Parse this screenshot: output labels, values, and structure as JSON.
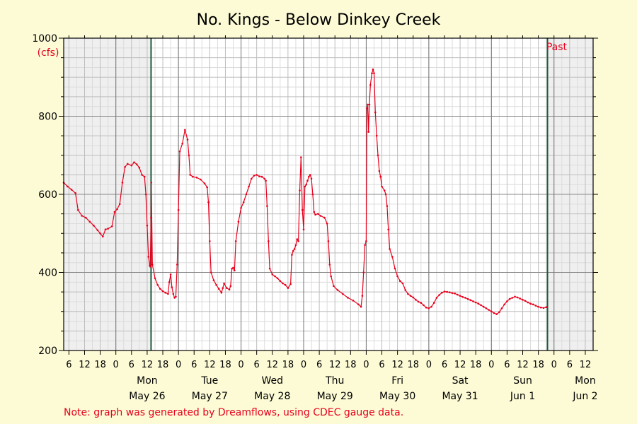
{
  "chart_data": {
    "type": "line",
    "title": "No. Kings - Below Dinkey Creek",
    "ylabel": "(cfs)",
    "ylim": [
      200,
      1000
    ],
    "yticks": [
      200,
      400,
      600,
      800,
      1000
    ],
    "x_unit": "hours",
    "xlim": [
      -20,
      183
    ],
    "past_label": "Past",
    "shaded_before": 13.5,
    "shaded_after": 165.5,
    "hour_ticks": [
      {
        "x": -18,
        "label": "6"
      },
      {
        "x": -12,
        "label": "12"
      },
      {
        "x": -6,
        "label": "18"
      },
      {
        "x": 0,
        "label": "0"
      },
      {
        "x": 6,
        "label": "6"
      },
      {
        "x": 12,
        "label": "12"
      },
      {
        "x": 18,
        "label": "18"
      },
      {
        "x": 24,
        "label": "0"
      },
      {
        "x": 30,
        "label": "6"
      },
      {
        "x": 36,
        "label": "12"
      },
      {
        "x": 42,
        "label": "18"
      },
      {
        "x": 48,
        "label": "0"
      },
      {
        "x": 54,
        "label": "6"
      },
      {
        "x": 60,
        "label": "12"
      },
      {
        "x": 66,
        "label": "18"
      },
      {
        "x": 72,
        "label": "0"
      },
      {
        "x": 78,
        "label": "6"
      },
      {
        "x": 84,
        "label": "12"
      },
      {
        "x": 90,
        "label": "18"
      },
      {
        "x": 96,
        "label": "0"
      },
      {
        "x": 102,
        "label": "6"
      },
      {
        "x": 108,
        "label": "12"
      },
      {
        "x": 114,
        "label": "18"
      },
      {
        "x": 120,
        "label": "0"
      },
      {
        "x": 126,
        "label": "6"
      },
      {
        "x": 132,
        "label": "12"
      },
      {
        "x": 138,
        "label": "18"
      },
      {
        "x": 144,
        "label": "0"
      },
      {
        "x": 150,
        "label": "6"
      },
      {
        "x": 156,
        "label": "12"
      },
      {
        "x": 162,
        "label": "18"
      },
      {
        "x": 168,
        "label": "0"
      },
      {
        "x": 174,
        "label": "6"
      },
      {
        "x": 180,
        "label": "12"
      }
    ],
    "day_labels": [
      {
        "x": 12,
        "day": "Mon",
        "date": "May 26"
      },
      {
        "x": 36,
        "day": "Tue",
        "date": "May 27"
      },
      {
        "x": 60,
        "day": "Wed",
        "date": "May 28"
      },
      {
        "x": 84,
        "day": "Thu",
        "date": "May 29"
      },
      {
        "x": 108,
        "day": "Fri",
        "date": "May 30"
      },
      {
        "x": 132,
        "day": "Sat",
        "date": "May 31"
      },
      {
        "x": 156,
        "day": "Sun",
        "date": "Jun 1"
      },
      {
        "x": 180,
        "day": "Mon",
        "date": "Jun 2"
      }
    ],
    "day_lines": [
      0,
      24,
      48,
      72,
      96,
      120,
      144,
      168
    ],
    "now_lines": [
      13.5,
      165.5
    ],
    "series": [
      {
        "color": "#e8001c",
        "points": [
          [
            -20,
            630
          ],
          [
            -18.5,
            620
          ],
          [
            -17,
            612
          ],
          [
            -15.5,
            603
          ],
          [
            -14.5,
            560
          ],
          [
            -13,
            545
          ],
          [
            -11.5,
            540
          ],
          [
            -10,
            530
          ],
          [
            -8.5,
            520
          ],
          [
            -7,
            508
          ],
          [
            -6,
            500
          ],
          [
            -5,
            492
          ],
          [
            -4,
            510
          ],
          [
            -3,
            512
          ],
          [
            -1.5,
            518
          ],
          [
            -0.5,
            555
          ],
          [
            0.5,
            562
          ],
          [
            1.5,
            575
          ],
          [
            2.5,
            630
          ],
          [
            3.5,
            670
          ],
          [
            4.5,
            678
          ],
          [
            6,
            674
          ],
          [
            7,
            682
          ],
          [
            8,
            677
          ],
          [
            9,
            668
          ],
          [
            10,
            650
          ],
          [
            11,
            645
          ],
          [
            11.5,
            600
          ],
          [
            12,
            520
          ],
          [
            12.5,
            440
          ],
          [
            13,
            418
          ],
          [
            13.2,
            415
          ],
          [
            13.5,
            540
          ],
          [
            13.6,
            630
          ],
          [
            14,
            420
          ],
          [
            15,
            385
          ],
          [
            16,
            368
          ],
          [
            17,
            358
          ],
          [
            18,
            352
          ],
          [
            19,
            348
          ],
          [
            20,
            345
          ],
          [
            20.5,
            375
          ],
          [
            21,
            395
          ],
          [
            21.5,
            362
          ],
          [
            22,
            345
          ],
          [
            22.5,
            335
          ],
          [
            23,
            338
          ],
          [
            23.5,
            420
          ],
          [
            24,
            560
          ],
          [
            24.5,
            710
          ],
          [
            25.5,
            730
          ],
          [
            26.5,
            765
          ],
          [
            27.5,
            740
          ],
          [
            28,
            700
          ],
          [
            28.5,
            650
          ],
          [
            29.5,
            645
          ],
          [
            31,
            643
          ],
          [
            32.5,
            638
          ],
          [
            34,
            628
          ],
          [
            35,
            618
          ],
          [
            35.5,
            580
          ],
          [
            36,
            480
          ],
          [
            36.5,
            400
          ],
          [
            37.5,
            380
          ],
          [
            38.5,
            368
          ],
          [
            39.5,
            358
          ],
          [
            40.5,
            348
          ],
          [
            41,
            360
          ],
          [
            41.5,
            372
          ],
          [
            42.5,
            360
          ],
          [
            43.5,
            356
          ],
          [
            44,
            365
          ],
          [
            44.5,
            410
          ],
          [
            45,
            412
          ],
          [
            45.5,
            405
          ],
          [
            46,
            480
          ],
          [
            47,
            530
          ],
          [
            48,
            565
          ],
          [
            49,
            580
          ],
          [
            50,
            600
          ],
          [
            51,
            620
          ],
          [
            52,
            640
          ],
          [
            53,
            648
          ],
          [
            54,
            650
          ],
          [
            55,
            646
          ],
          [
            56,
            645
          ],
          [
            57,
            640
          ],
          [
            57.5,
            635
          ],
          [
            58,
            570
          ],
          [
            58.5,
            480
          ],
          [
            59,
            410
          ],
          [
            60,
            395
          ],
          [
            61,
            390
          ],
          [
            62,
            385
          ],
          [
            63,
            378
          ],
          [
            64,
            372
          ],
          [
            65,
            368
          ],
          [
            66,
            360
          ],
          [
            67,
            370
          ],
          [
            67.5,
            445
          ],
          [
            68,
            455
          ],
          [
            68.5,
            460
          ],
          [
            69,
            470
          ],
          [
            69.5,
            485
          ],
          [
            70,
            480
          ],
          [
            70.5,
            610
          ],
          [
            71,
            695
          ],
          [
            71.5,
            560
          ],
          [
            72,
            510
          ],
          [
            72.5,
            620
          ],
          [
            73,
            625
          ],
          [
            73.5,
            635
          ],
          [
            74,
            645
          ],
          [
            74.5,
            650
          ],
          [
            75,
            640
          ],
          [
            75.5,
            600
          ],
          [
            76,
            555
          ],
          [
            76.5,
            548
          ],
          [
            77.5,
            550
          ],
          [
            78.5,
            545
          ],
          [
            80,
            540
          ],
          [
            81,
            525
          ],
          [
            81.5,
            480
          ],
          [
            82,
            420
          ],
          [
            82.5,
            390
          ],
          [
            83.5,
            365
          ],
          [
            85,
            355
          ],
          [
            87,
            345
          ],
          [
            89,
            335
          ],
          [
            91,
            328
          ],
          [
            93,
            318
          ],
          [
            94,
            312
          ],
          [
            94.5,
            340
          ],
          [
            95,
            400
          ],
          [
            95.5,
            470
          ],
          [
            96,
            480
          ],
          [
            96.3,
            820
          ],
          [
            96.6,
            830
          ],
          [
            96.9,
            760
          ],
          [
            97.2,
            830
          ],
          [
            97.6,
            880
          ],
          [
            98.2,
            910
          ],
          [
            98.6,
            920
          ],
          [
            99,
            910
          ],
          [
            99.5,
            810
          ],
          [
            100,
            750
          ],
          [
            100.5,
            700
          ],
          [
            101,
            660
          ],
          [
            101.5,
            645
          ],
          [
            102,
            620
          ],
          [
            103,
            610
          ],
          [
            103.5,
            600
          ],
          [
            104,
            570
          ],
          [
            104.5,
            510
          ],
          [
            105,
            460
          ],
          [
            106,
            440
          ],
          [
            107,
            410
          ],
          [
            108,
            390
          ],
          [
            109,
            378
          ],
          [
            110,
            372
          ],
          [
            111,
            355
          ],
          [
            112,
            345
          ],
          [
            113,
            340
          ],
          [
            114,
            336
          ],
          [
            115,
            330
          ],
          [
            116,
            325
          ],
          [
            117,
            322
          ],
          [
            118,
            316
          ],
          [
            119,
            310
          ],
          [
            120,
            308
          ],
          [
            121,
            312
          ],
          [
            122,
            322
          ],
          [
            123,
            335
          ],
          [
            124,
            342
          ],
          [
            125,
            348
          ],
          [
            126,
            351
          ],
          [
            127,
            350
          ],
          [
            128,
            349
          ],
          [
            129,
            347
          ],
          [
            130,
            346
          ],
          [
            131,
            343
          ],
          [
            132,
            340
          ],
          [
            133,
            337
          ],
          [
            134,
            335
          ],
          [
            135,
            332
          ],
          [
            136,
            329
          ],
          [
            137,
            326
          ],
          [
            138,
            323
          ],
          [
            139,
            320
          ],
          [
            140,
            316
          ],
          [
            141,
            312
          ],
          [
            142,
            308
          ],
          [
            143,
            304
          ],
          [
            144,
            300
          ],
          [
            145,
            296
          ],
          [
            146,
            293
          ],
          [
            147,
            298
          ],
          [
            148,
            308
          ],
          [
            149,
            318
          ],
          [
            150,
            326
          ],
          [
            151,
            332
          ],
          [
            152,
            335
          ],
          [
            153,
            338
          ],
          [
            154,
            336
          ],
          [
            155,
            333
          ],
          [
            156,
            330
          ],
          [
            157,
            327
          ],
          [
            158,
            323
          ],
          [
            159,
            320
          ],
          [
            160,
            318
          ],
          [
            161,
            315
          ],
          [
            162,
            312
          ],
          [
            163,
            310
          ],
          [
            164,
            309
          ],
          [
            165,
            311
          ]
        ]
      }
    ]
  },
  "footer": {
    "note": "Note: graph was generated by Dreamflows, using CDEC gauge data."
  }
}
